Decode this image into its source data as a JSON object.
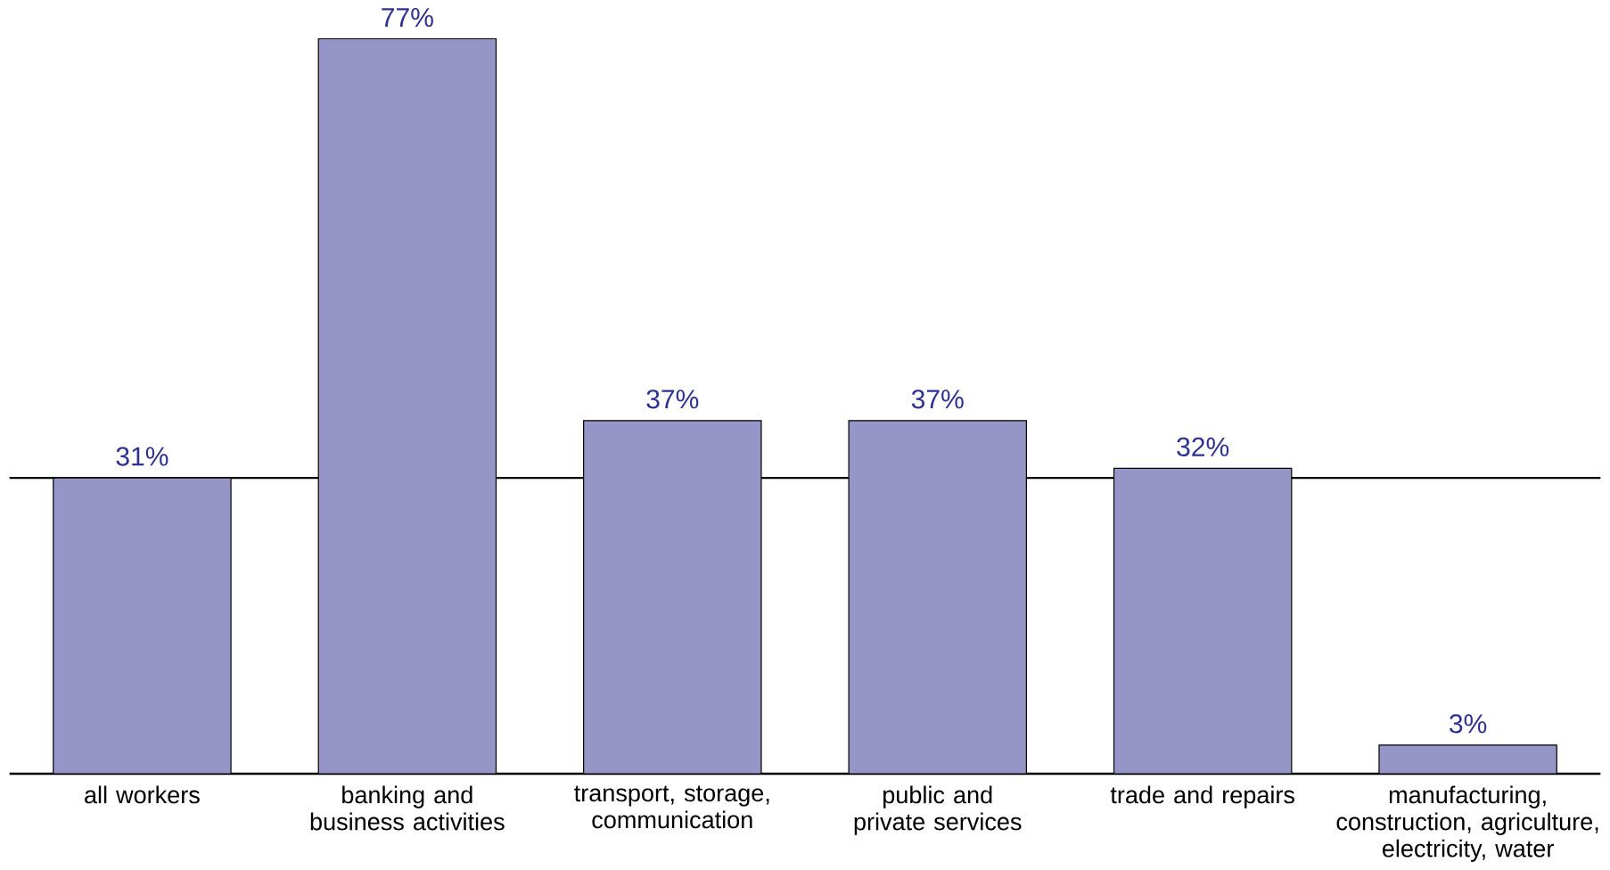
{
  "chart_data": {
    "type": "bar",
    "categories": [
      "all workers",
      "banking and business activities",
      "transport, storage, communication",
      "public and private services",
      "trade and repairs",
      "manufacturing, construction, agriculture, electricity, water"
    ],
    "values": [
      31,
      77,
      37,
      37,
      32,
      3
    ],
    "value_labels": [
      "31%",
      "77%",
      "37%",
      "37%",
      "32%",
      "3%"
    ],
    "color": "#9595c8",
    "ref_lines": [
      {
        "axis": "y",
        "value": 31,
        "color": "#000000"
      }
    ]
  }
}
